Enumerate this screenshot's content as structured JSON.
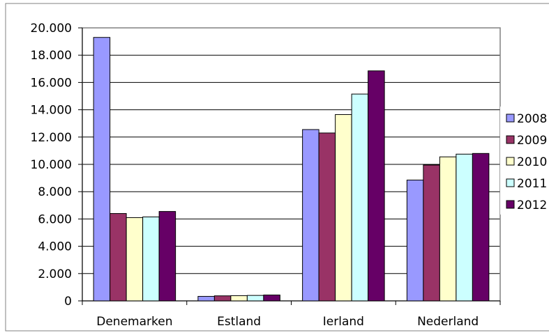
{
  "chart_data": {
    "type": "bar",
    "title": "",
    "xlabel": "",
    "ylabel": "",
    "categories": [
      "Denemarken",
      "Estland",
      "Ierland",
      "Nederland"
    ],
    "series": [
      {
        "name": "2008",
        "values": [
          19300,
          330,
          12550,
          8850
        ],
        "color": "#9999ff"
      },
      {
        "name": "2009",
        "values": [
          6400,
          370,
          12300,
          9950
        ],
        "color": "#993366"
      },
      {
        "name": "2010",
        "values": [
          6100,
          380,
          13650,
          10550
        ],
        "color": "#ffffcc"
      },
      {
        "name": "2011",
        "values": [
          6150,
          400,
          15150,
          10750
        ],
        "color": "#ccffff"
      },
      {
        "name": "2012",
        "values": [
          6550,
          430,
          16850,
          10800
        ],
        "color": "#660066"
      }
    ],
    "ylim": [
      0,
      20000
    ],
    "yticks": [
      0,
      2000,
      4000,
      6000,
      8000,
      10000,
      12000,
      14000,
      16000,
      18000,
      20000
    ],
    "ytick_labels": [
      "0",
      "2.000",
      "4.000",
      "6.000",
      "8.000",
      "10.000",
      "12.000",
      "14.000",
      "16.000",
      "18.000",
      "20.000"
    ],
    "grid": true,
    "legend_placement": "right",
    "plot_area_color": "#ffffff",
    "gridline_color": "#000000",
    "frame_color": "#808080",
    "bar_edge_color": "#000000"
  }
}
